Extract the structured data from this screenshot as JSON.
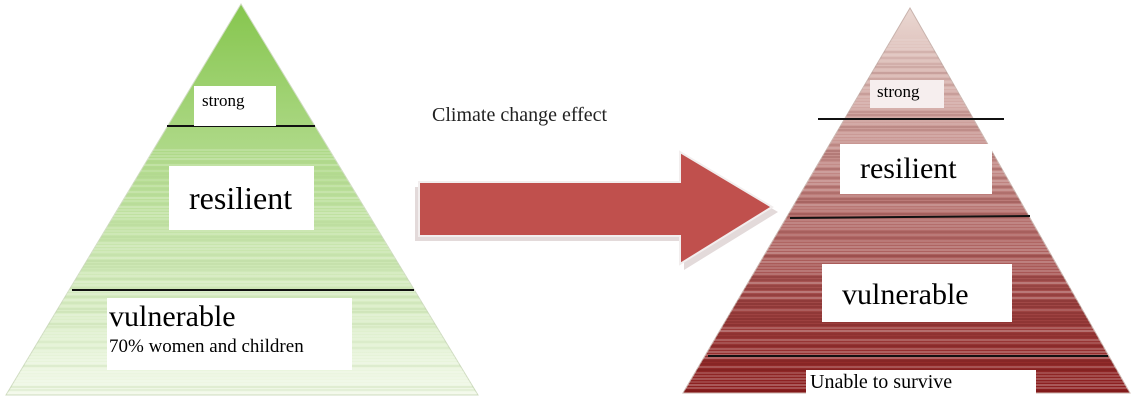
{
  "caption": "Climate change effect",
  "left_pyramid": {
    "labels": {
      "strong": "strong",
      "resilient": "resilient",
      "vulnerable": "vulnerable",
      "vulnerable_note": "70% women and children"
    }
  },
  "right_pyramid": {
    "labels": {
      "strong": "strong",
      "resilient": "resilient",
      "vulnerable": "vulnerable",
      "bottom": "Unable to survive"
    }
  },
  "colors": {
    "left_top": "#86c64e",
    "left_bottom": "#f1f8e8",
    "right_top": "#ead8d2",
    "right_bottom": "#8a1c1c",
    "arrow_fill": "#c0504d",
    "arrow_shadow": "#e3dada",
    "divider": "#111111"
  }
}
